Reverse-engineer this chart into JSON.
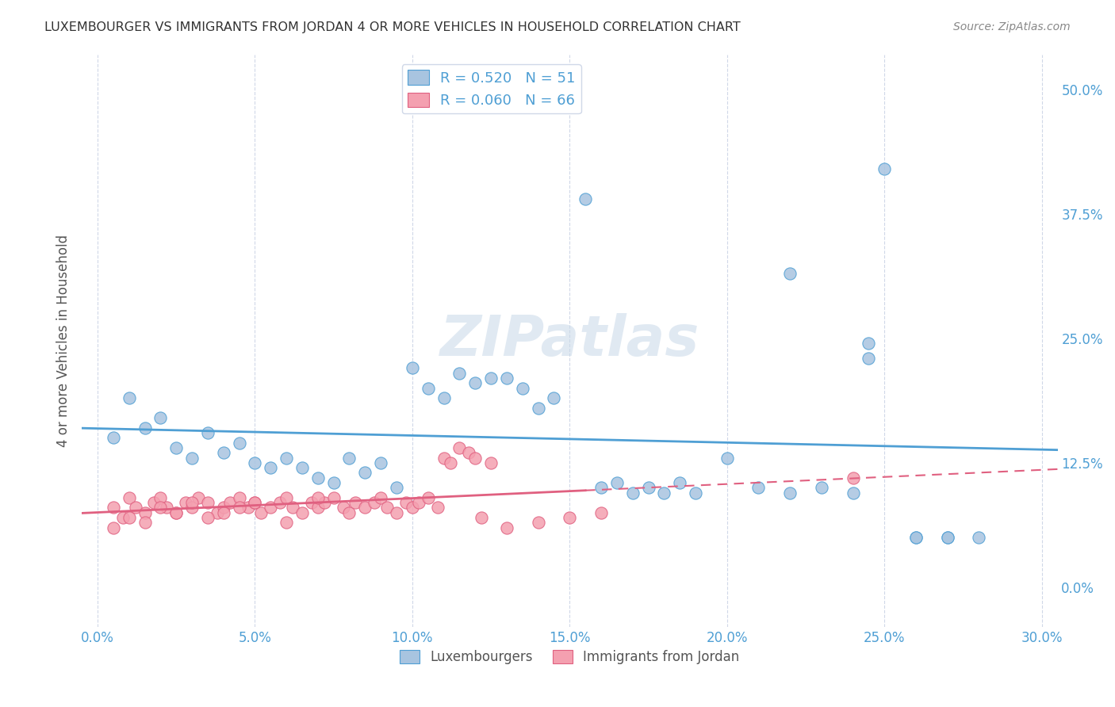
{
  "title": "LUXEMBOURGER VS IMMIGRANTS FROM JORDAN 4 OR MORE VEHICLES IN HOUSEHOLD CORRELATION CHART",
  "source": "Source: ZipAtlas.com",
  "xlabel_ticks": [
    "0.0%",
    "5.0%",
    "10.0%",
    "15.0%",
    "20.0%",
    "25.0%",
    "30.0%"
  ],
  "xlabel_vals": [
    0.0,
    0.05,
    0.1,
    0.15,
    0.2,
    0.25,
    0.3
  ],
  "ylabel": "4 or more Vehicles in Household",
  "ylabel_ticks_right": [
    "50.0%",
    "37.5%",
    "25.0%",
    "12.5%",
    "0.0%"
  ],
  "ylabel_vals_right": [
    0.5,
    0.375,
    0.25,
    0.125,
    0.0
  ],
  "xlim": [
    -0.005,
    0.305
  ],
  "ylim": [
    -0.04,
    0.535
  ],
  "lux_R": 0.52,
  "lux_N": 51,
  "jordan_R": 0.06,
  "jordan_N": 66,
  "lux_color": "#a8c4e0",
  "jordan_color": "#f4a0b0",
  "lux_line_color": "#4f9fd4",
  "jordan_line_color": "#e06080",
  "legend_text_color": "#4f9fd4",
  "lux_scatter_x": [
    0.005,
    0.01,
    0.015,
    0.02,
    0.025,
    0.03,
    0.035,
    0.04,
    0.045,
    0.05,
    0.055,
    0.06,
    0.065,
    0.07,
    0.075,
    0.08,
    0.085,
    0.09,
    0.095,
    0.1,
    0.105,
    0.11,
    0.115,
    0.12,
    0.125,
    0.13,
    0.135,
    0.14,
    0.145,
    0.155,
    0.16,
    0.165,
    0.17,
    0.175,
    0.18,
    0.185,
    0.19,
    0.2,
    0.21,
    0.22,
    0.23,
    0.24,
    0.245,
    0.25,
    0.26,
    0.27,
    0.28,
    0.22,
    0.245,
    0.26,
    0.27
  ],
  "lux_scatter_y": [
    0.15,
    0.19,
    0.16,
    0.17,
    0.14,
    0.13,
    0.155,
    0.135,
    0.145,
    0.125,
    0.12,
    0.13,
    0.12,
    0.11,
    0.105,
    0.13,
    0.115,
    0.125,
    0.1,
    0.22,
    0.2,
    0.19,
    0.215,
    0.205,
    0.21,
    0.21,
    0.2,
    0.18,
    0.19,
    0.39,
    0.1,
    0.105,
    0.095,
    0.1,
    0.095,
    0.105,
    0.095,
    0.13,
    0.1,
    0.095,
    0.1,
    0.095,
    0.23,
    0.42,
    0.05,
    0.05,
    0.05,
    0.315,
    0.245,
    0.05,
    0.05
  ],
  "jordan_scatter_x": [
    0.005,
    0.008,
    0.01,
    0.012,
    0.015,
    0.018,
    0.02,
    0.022,
    0.025,
    0.028,
    0.03,
    0.032,
    0.035,
    0.038,
    0.04,
    0.042,
    0.045,
    0.048,
    0.05,
    0.052,
    0.055,
    0.058,
    0.06,
    0.062,
    0.065,
    0.068,
    0.07,
    0.072,
    0.075,
    0.078,
    0.08,
    0.082,
    0.085,
    0.088,
    0.09,
    0.092,
    0.095,
    0.098,
    0.1,
    0.102,
    0.105,
    0.108,
    0.11,
    0.112,
    0.115,
    0.118,
    0.12,
    0.122,
    0.125,
    0.13,
    0.14,
    0.15,
    0.16,
    0.005,
    0.01,
    0.015,
    0.02,
    0.025,
    0.03,
    0.035,
    0.04,
    0.045,
    0.05,
    0.06,
    0.07,
    0.24
  ],
  "jordan_scatter_y": [
    0.08,
    0.07,
    0.09,
    0.08,
    0.075,
    0.085,
    0.09,
    0.08,
    0.075,
    0.085,
    0.08,
    0.09,
    0.085,
    0.075,
    0.08,
    0.085,
    0.09,
    0.08,
    0.085,
    0.075,
    0.08,
    0.085,
    0.09,
    0.08,
    0.075,
    0.085,
    0.08,
    0.085,
    0.09,
    0.08,
    0.075,
    0.085,
    0.08,
    0.085,
    0.09,
    0.08,
    0.075,
    0.085,
    0.08,
    0.085,
    0.09,
    0.08,
    0.13,
    0.125,
    0.14,
    0.135,
    0.13,
    0.07,
    0.125,
    0.06,
    0.065,
    0.07,
    0.075,
    0.06,
    0.07,
    0.065,
    0.08,
    0.075,
    0.085,
    0.07,
    0.075,
    0.08,
    0.085,
    0.065,
    0.09,
    0.11
  ],
  "watermark": "ZIPatlas",
  "background_color": "#ffffff",
  "grid_color": "#d0d8e8"
}
